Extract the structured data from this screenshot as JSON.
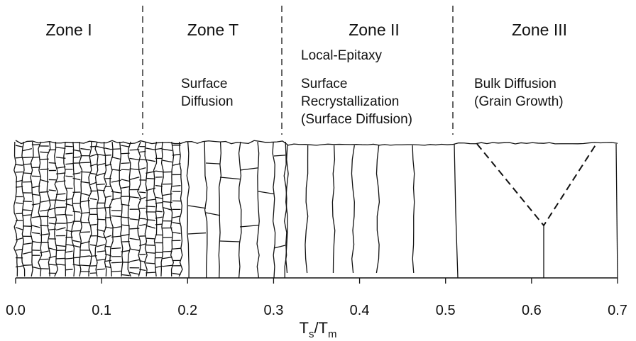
{
  "zones": [
    {
      "title": "Zone I"
    },
    {
      "title": "Zone T",
      "notes": [
        "Surface",
        "Diffusion"
      ]
    },
    {
      "title": "Zone II",
      "notes": [
        "Local-Epitaxy",
        "Surface",
        "Recrystallization",
        "(Surface Diffusion)"
      ]
    },
    {
      "title": "Zone III",
      "notes": [
        "Bulk Diffusion",
        "(Grain Growth)"
      ]
    }
  ],
  "x_axis": {
    "label": {
      "t1": "T",
      "s1": "s",
      "slash": "/T",
      "s2": "m"
    },
    "xlim": [
      0,
      0.7
    ],
    "ticks": [
      {
        "value": 0,
        "label": "0.0"
      },
      0.1,
      0.2,
      0.3,
      0.4,
      0.5,
      0.6,
      0.7
    ]
  }
}
